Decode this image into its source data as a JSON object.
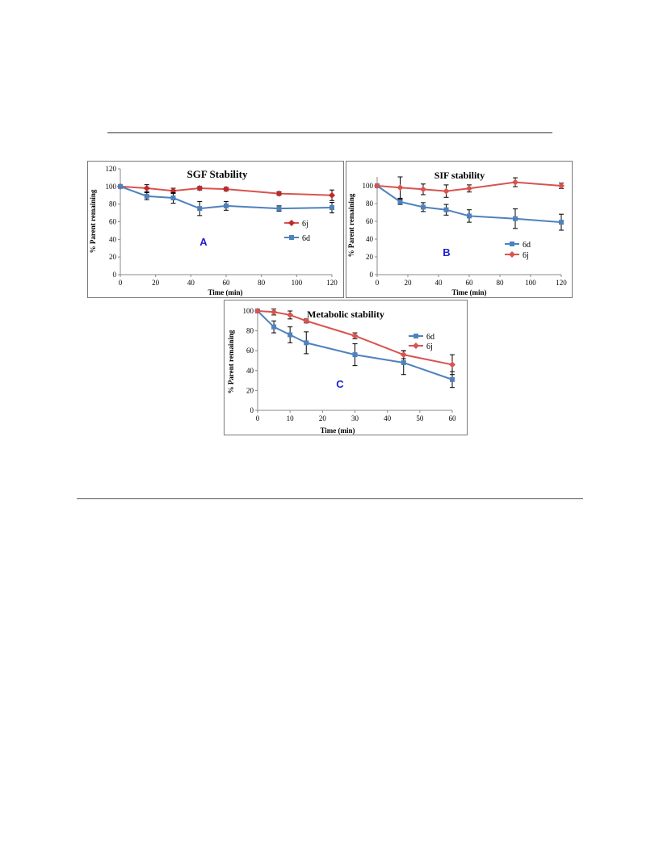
{
  "chart_data": [
    {
      "type": "line",
      "title": "SGF Stability",
      "xlabel": "Time (min)",
      "ylabel": "% Parent remaining",
      "panel_label": "A",
      "xlim": [
        0,
        120
      ],
      "ylim": [
        0,
        120
      ],
      "xticks": [
        0,
        20,
        40,
        60,
        80,
        100,
        120
      ],
      "yticks": [
        0,
        20,
        40,
        60,
        80,
        100,
        120
      ],
      "grid": false,
      "legend_position": "right",
      "series": [
        {
          "name": "6j",
          "color": "#c0292b",
          "line_color": "#d9534f",
          "marker": "diamond",
          "x": [
            0,
            15,
            30,
            45,
            60,
            90,
            120
          ],
          "y": [
            100,
            98,
            95,
            98,
            97,
            92,
            90
          ],
          "err": [
            0,
            4,
            3,
            2,
            2,
            2,
            6
          ]
        },
        {
          "name": "6d",
          "color": "#4f81bd",
          "line_color": "#4f81bd",
          "marker": "square",
          "x": [
            0,
            15,
            30,
            45,
            60,
            90,
            120
          ],
          "y": [
            100,
            89,
            87,
            75,
            78,
            75,
            76
          ],
          "err": [
            0,
            4,
            6,
            8,
            5,
            3,
            6
          ]
        }
      ]
    },
    {
      "type": "line",
      "title": "SIF stability",
      "xlabel": "Time (min)",
      "ylabel": "% Parent remaining",
      "panel_label": "B",
      "xlim": [
        0,
        120
      ],
      "ylim": [
        0,
        110
      ],
      "xticks": [
        0,
        20,
        40,
        60,
        80,
        100,
        120
      ],
      "yticks": [
        0,
        20,
        40,
        60,
        80,
        100
      ],
      "grid": false,
      "legend_position": "right",
      "series": [
        {
          "name": "6d",
          "color": "#4f81bd",
          "line_color": "#4f81bd",
          "marker": "square",
          "x": [
            0,
            15,
            30,
            45,
            60,
            90,
            120
          ],
          "y": [
            100,
            82,
            76,
            73,
            66,
            63,
            59
          ],
          "err": [
            0,
            3,
            5,
            6,
            7,
            11,
            9
          ]
        },
        {
          "name": "6j",
          "color": "#d9534f",
          "line_color": "#d9534f",
          "marker": "diamond",
          "x": [
            0,
            15,
            30,
            45,
            60,
            90,
            120
          ],
          "y": [
            100,
            98,
            96,
            94,
            97,
            104,
            100
          ],
          "err": [
            0,
            12,
            6,
            7,
            4,
            5,
            3
          ]
        }
      ]
    },
    {
      "type": "line",
      "title": "Metabolic stability",
      "xlabel": "Time (min)",
      "ylabel": "% Parent remaining",
      "panel_label": "C",
      "xlim": [
        0,
        60
      ],
      "ylim": [
        0,
        100
      ],
      "xticks": [
        0,
        10,
        20,
        30,
        40,
        50,
        60
      ],
      "yticks": [
        0,
        20,
        40,
        60,
        80,
        100
      ],
      "grid": false,
      "legend_position": "right",
      "series": [
        {
          "name": "6d",
          "color": "#4f81bd",
          "line_color": "#4f81bd",
          "marker": "square",
          "x": [
            0,
            5,
            10,
            15,
            30,
            45,
            60
          ],
          "y": [
            100,
            84,
            76,
            68,
            56,
            48,
            31
          ],
          "err": [
            0,
            6,
            8,
            11,
            11,
            12,
            8
          ]
        },
        {
          "name": "6j",
          "color": "#d9534f",
          "line_color": "#d9534f",
          "marker": "diamond",
          "x": [
            0,
            5,
            10,
            15,
            30,
            45,
            60
          ],
          "y": [
            100,
            99,
            96,
            90,
            75,
            56,
            46
          ],
          "err": [
            0,
            3,
            4,
            2,
            3,
            4,
            10
          ]
        }
      ]
    }
  ]
}
